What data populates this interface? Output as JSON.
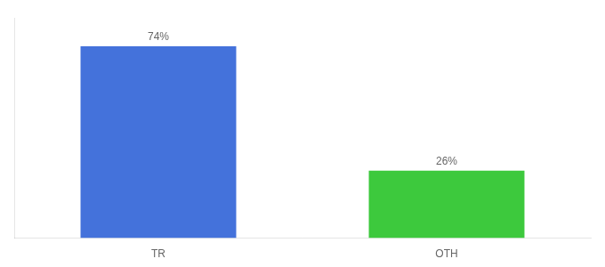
{
  "chart_data": {
    "type": "bar",
    "categories": [
      "TR",
      "OTH"
    ],
    "values": [
      74,
      26
    ],
    "colors": [
      "#4472db",
      "#3dc93d"
    ],
    "ylim": [
      0,
      85
    ],
    "data_labels": true,
    "value_labels": [
      "74%",
      "26%"
    ],
    "tick_labels": "x",
    "grid": false
  }
}
